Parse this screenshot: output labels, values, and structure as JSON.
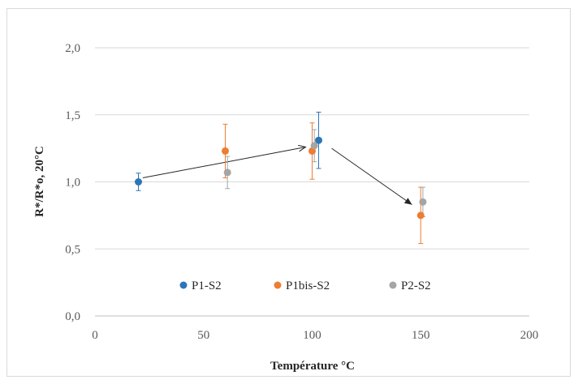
{
  "chart_data": {
    "type": "scatter",
    "title": "",
    "xlabel": "Température °C",
    "ylabel": "R*/R*o, 20°C",
    "xlim": [
      0,
      200
    ],
    "ylim": [
      0,
      2
    ],
    "xticks": [
      0,
      50,
      100,
      150,
      200
    ],
    "yticks": [
      0,
      0.5,
      1,
      1.5,
      2
    ],
    "xtick_labels": [
      "0",
      "50",
      "100",
      "150",
      "200"
    ],
    "ytick_labels": [
      "0,0",
      "0,5",
      "1,0",
      "1,5",
      "2,0"
    ],
    "grid": "horizontal",
    "legend_position": "inside-bottom",
    "series": [
      {
        "name": "P1-S2",
        "color": "#2e75b6",
        "points": [
          {
            "x": 20,
            "y": 1.0,
            "err": 0.065
          },
          {
            "x": 103,
            "y": 1.31,
            "err": 0.21
          }
        ]
      },
      {
        "name": "P1bis-S2",
        "color": "#ed7d31",
        "points": [
          {
            "x": 60,
            "y": 1.23,
            "err": 0.2
          },
          {
            "x": 100,
            "y": 1.23,
            "err": 0.21
          },
          {
            "x": 150,
            "y": 0.75,
            "err": 0.21
          }
        ]
      },
      {
        "name": "P2-S2",
        "color": "#a5a5a5",
        "points": [
          {
            "x": 61,
            "y": 1.07,
            "err": 0.12
          },
          {
            "x": 101,
            "y": 1.27,
            "err": 0.12
          },
          {
            "x": 151,
            "y": 0.85,
            "err": 0.11
          }
        ]
      }
    ],
    "annotations": [
      {
        "type": "arrow",
        "from": [
          22,
          1.03
        ],
        "to": [
          97,
          1.26
        ]
      },
      {
        "type": "arrow",
        "from": [
          109,
          1.25
        ],
        "to": [
          146,
          0.83
        ]
      }
    ]
  }
}
